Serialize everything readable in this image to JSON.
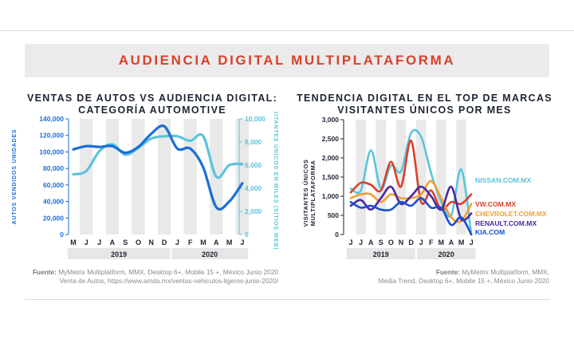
{
  "banner": {
    "title": "AUDIENCIA DIGITAL MULTIPLATAFORMA"
  },
  "left": {
    "title_line1": "VENTAS DE AUTOS VS AUDIENCIA DIGITAL:",
    "title_line2": "CATEGORÍA AUTOMOTIVE",
    "source_label": "Fuente:",
    "source_line1": " MyMetrix Multiplatform, MMX, Desktop 6+, Mobile 15 +, México Junio 2020",
    "source_line2": "Venta de Autos, https://www.amda.mx/ventas-vehiculos-ligeros-junio-2020/"
  },
  "right": {
    "title_line1": "TENDENCIA DIGITAL EN EL TOP DE MARCAS",
    "title_line2": "VISITANTES ÚNICOS POR MES",
    "source_label": "Fuente:",
    "source_line1": " MyMetrix Multiplatform, MMX,",
    "source_line2": "Media Trend, Desktop 6+, Mobile 15 +, México Junio 2020"
  },
  "chart_data": [
    {
      "type": "line",
      "categories": [
        "M",
        "J",
        "J",
        "A",
        "S",
        "O",
        "N",
        "D",
        "J",
        "F",
        "M",
        "A",
        "M",
        "J"
      ],
      "year_groups": [
        {
          "label": "2019",
          "span": 8
        },
        {
          "label": "2020",
          "span": 6
        }
      ],
      "ylabel": "AUTOS VENDIDOS UNIDADES",
      "ylabel_right": "VISITANTES ÚNICOS EN MILES (SITIOS WEB)",
      "ylim": [
        0,
        140000
      ],
      "yticks": [
        "0",
        "20,000",
        "40,000",
        "60,000",
        "80,000",
        "100,000",
        "120,000",
        "140,000"
      ],
      "ylim_right": [
        0,
        10000
      ],
      "yticks_right": [
        "0",
        "2,000",
        "4,000",
        "6,000",
        "8,000",
        "10,000"
      ],
      "colors": {
        "left_axis": "#1a6fd9",
        "right_axis": "#5bc4dc"
      },
      "series": [
        {
          "axis": "left",
          "color": "#1a6fd9",
          "values": [
            103000,
            107000,
            106000,
            107000,
            99000,
            106000,
            122000,
            131000,
            104000,
            104000,
            81000,
            33000,
            40000,
            62000
          ]
        },
        {
          "axis": "right",
          "color": "#5bc4dc",
          "values": [
            5200,
            5500,
            7200,
            7800,
            6900,
            7500,
            8300,
            8500,
            8500,
            8100,
            8500,
            5000,
            6000,
            6100
          ]
        }
      ],
      "grid": "alternating vertical bands"
    },
    {
      "type": "line",
      "categories": [
        "J",
        "J",
        "A",
        "S",
        "O",
        "N",
        "D",
        "J",
        "F",
        "M",
        "A",
        "M",
        "J"
      ],
      "year_groups": [
        {
          "label": "2019",
          "span": 7
        },
        {
          "label": "2020",
          "span": 6
        }
      ],
      "ylabel": "VISITANTES ÚNICOS MULTIPLATAFORMA",
      "ylim": [
        0,
        3000
      ],
      "yticks": [
        "0",
        "500",
        "1,000",
        "1,500",
        "2,000",
        "2,500",
        "3,000"
      ],
      "series": [
        {
          "name": "NISSAN.COM.MX",
          "color": "#5bc4dc",
          "values": [
            1200,
            1150,
            2200,
            1200,
            1800,
            1650,
            2650,
            2550,
            1600,
            850,
            500,
            1700,
            0
          ]
        },
        {
          "name": "VW.COM.MX",
          "color": "#d9412b",
          "values": [
            1100,
            1350,
            1300,
            1150,
            1900,
            1250,
            2450,
            850,
            1150,
            650,
            850,
            800,
            1050
          ]
        },
        {
          "name": "CHEVROLET.COM.MX",
          "color": "#f0a030",
          "values": [
            950,
            1050,
            1050,
            850,
            1050,
            950,
            950,
            1050,
            1400,
            950,
            450,
            350,
            800
          ]
        },
        {
          "name": "RENAULT.COM.MX",
          "color": "#4a2a9e",
          "values": [
            750,
            900,
            650,
            950,
            1250,
            800,
            1000,
            1250,
            1000,
            650,
            1250,
            400,
            550
          ]
        },
        {
          "name": "KIA.COM",
          "color": "#1a4fd0",
          "values": [
            850,
            700,
            750,
            650,
            650,
            850,
            750,
            950,
            700,
            700,
            250,
            450,
            0
          ]
        }
      ],
      "legend": "right",
      "grid": "alternating vertical bands"
    }
  ]
}
